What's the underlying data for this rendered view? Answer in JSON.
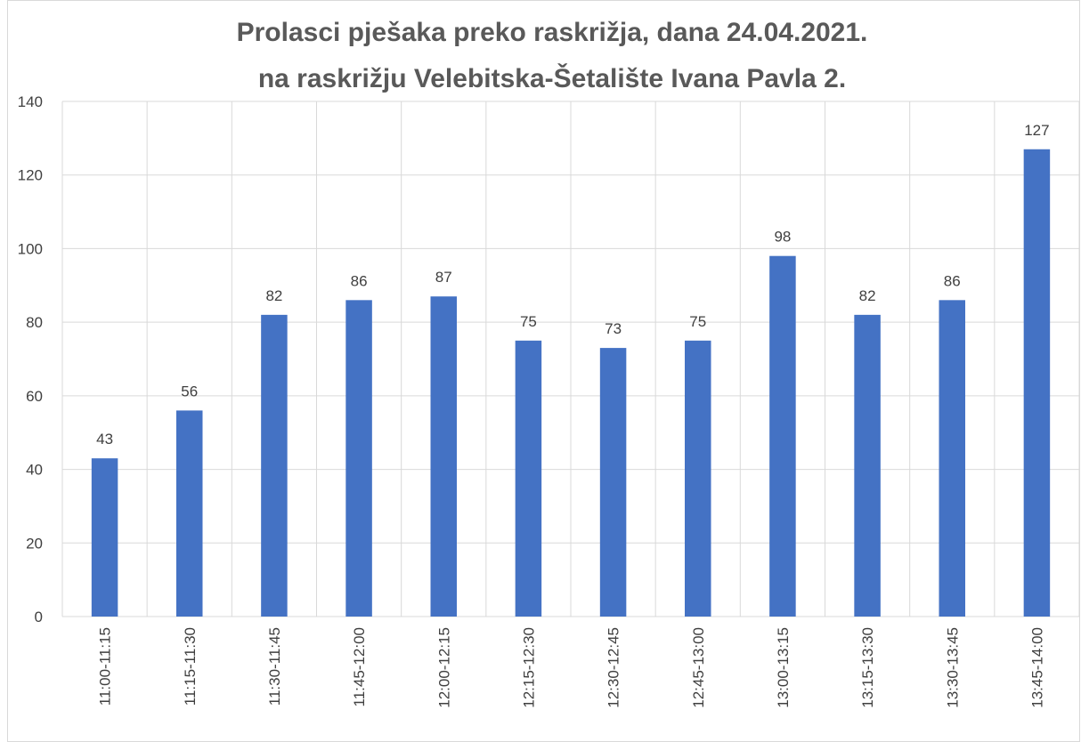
{
  "chart_data": {
    "type": "bar",
    "title": [
      "Prolasci pješaka preko raskrižja, dana 24.04.2021.",
      "na raskrižju Velebitska-Šetalište Ivana Pavla 2."
    ],
    "categories": [
      "11:00-11:15",
      "11:15-11:30",
      "11:30-11:45",
      "11:45-12:00",
      "12:00-12:15",
      "12:15-12:30",
      "12:30-12:45",
      "12:45-13:00",
      "13:00-13:15",
      "13:15-13:30",
      "13:30-13:45",
      "13:45-14:00"
    ],
    "values": [
      43,
      56,
      82,
      86,
      87,
      75,
      73,
      75,
      98,
      82,
      86,
      127
    ],
    "color": "#4472c4",
    "ylim": [
      0,
      140
    ],
    "yticks": [
      0,
      20,
      40,
      60,
      80,
      100,
      120,
      140
    ],
    "grid": true
  }
}
